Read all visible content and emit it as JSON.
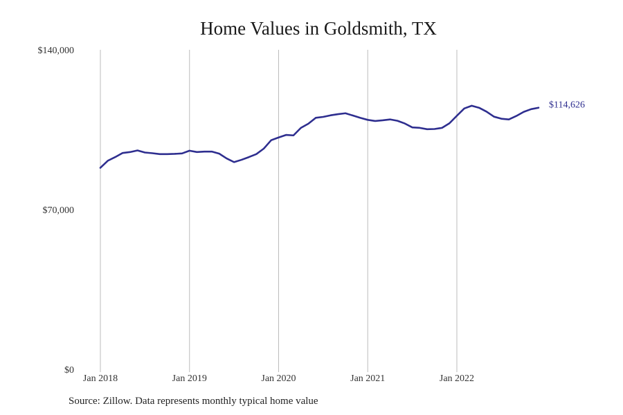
{
  "chart_data": {
    "type": "line",
    "title": "Home Values in Goldsmith, TX",
    "source_note": "Source: Zillow. Data represents monthly typical home value",
    "xlabel": "",
    "ylabel": "",
    "ylim": [
      0,
      140000
    ],
    "xlim": [
      "2018-01",
      "2022-12"
    ],
    "y_ticks": [
      {
        "value": 0,
        "label": "$0"
      },
      {
        "value": 70000,
        "label": "$70,000"
      },
      {
        "value": 140000,
        "label": "$140,000"
      }
    ],
    "x_ticks": [
      {
        "value": "2018-01",
        "label": "Jan 2018"
      },
      {
        "value": "2019-01",
        "label": "Jan 2019"
      },
      {
        "value": "2020-01",
        "label": "Jan 2020"
      },
      {
        "value": "2021-01",
        "label": "Jan 2021"
      },
      {
        "value": "2022-01",
        "label": "Jan 2022"
      }
    ],
    "grid": "vertical at year ticks",
    "line_color": "#2e2e8f",
    "grid_color": "#bbbbbb",
    "end_label": "$114,626",
    "series": [
      {
        "x": [
          "2018-01",
          "2018-02",
          "2018-03",
          "2018-04",
          "2018-05",
          "2018-06",
          "2018-07",
          "2018-08",
          "2018-09",
          "2018-10",
          "2018-11",
          "2018-12",
          "2019-01",
          "2019-02",
          "2019-03",
          "2019-04",
          "2019-05",
          "2019-06",
          "2019-07",
          "2019-08",
          "2019-09",
          "2019-10",
          "2019-11",
          "2019-12",
          "2020-01",
          "2020-02",
          "2020-03",
          "2020-04",
          "2020-05",
          "2020-06",
          "2020-07",
          "2020-08",
          "2020-09",
          "2020-10",
          "2020-11",
          "2020-12",
          "2021-01",
          "2021-02",
          "2021-03",
          "2021-04",
          "2021-05",
          "2021-06",
          "2021-07",
          "2021-08",
          "2021-09",
          "2021-10",
          "2021-11",
          "2021-12",
          "2022-01",
          "2022-02",
          "2022-03",
          "2022-04",
          "2022-05",
          "2022-06",
          "2022-07",
          "2022-08",
          "2022-09",
          "2022-10",
          "2022-11",
          "2022-12"
        ],
        "values": [
          88300,
          91400,
          93000,
          94800,
          95200,
          95900,
          95000,
          94700,
          94300,
          94300,
          94400,
          94600,
          95800,
          95200,
          95400,
          95400,
          94500,
          92400,
          90800,
          91800,
          93000,
          94300,
          96700,
          100400,
          101600,
          102700,
          102500,
          105800,
          107600,
          110200,
          110600,
          111300,
          111800,
          112200,
          111200,
          110200,
          109300,
          108800,
          109100,
          109500,
          108900,
          107700,
          106000,
          105800,
          105200,
          105300,
          105800,
          107800,
          111100,
          114300,
          115500,
          114600,
          112900,
          110700,
          109800,
          109500,
          111000,
          112800,
          114000,
          114626
        ]
      }
    ]
  }
}
